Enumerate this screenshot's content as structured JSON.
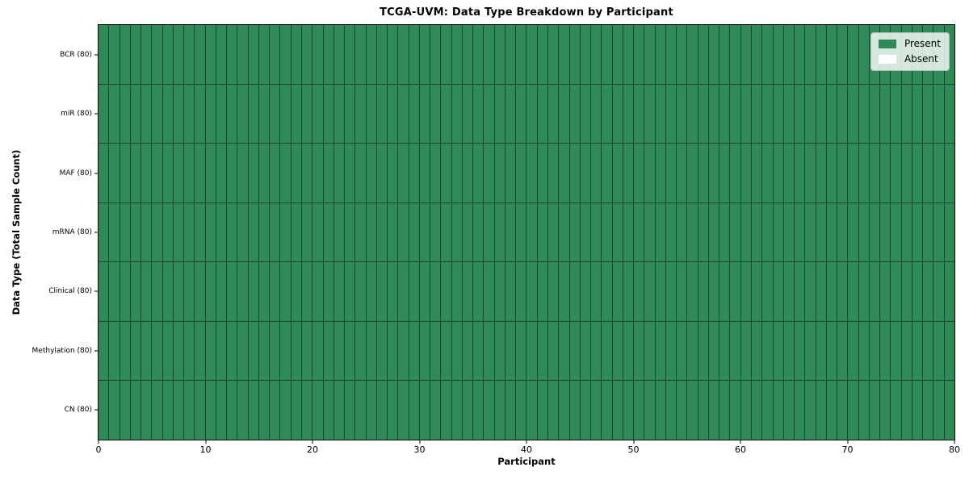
{
  "figure": {
    "background": "#ffffff"
  },
  "chart_data": {
    "type": "heatmap",
    "title": "TCGA-UVM: Data Type Breakdown by Participant",
    "xlabel": "Participant",
    "ylabel": "Data Type (Total Sample Count)",
    "xlim": [
      0,
      80
    ],
    "x_ticks": [
      0,
      10,
      20,
      30,
      40,
      50,
      60,
      70,
      80
    ],
    "n_participants": 80,
    "rows": [
      {
        "label": "BCR (80)",
        "present_count": 80
      },
      {
        "label": "miR (80)",
        "present_count": 80
      },
      {
        "label": "MAF (80)",
        "present_count": 80
      },
      {
        "label": "mRNA (80)",
        "present_count": 80
      },
      {
        "label": "Clinical (80)",
        "present_count": 80
      },
      {
        "label": "Methylation (80)",
        "present_count": 80
      },
      {
        "label": "CN (80)",
        "present_count": 80
      }
    ],
    "legend": {
      "position": "upper right",
      "entries": [
        {
          "label": "Present",
          "color": "#2e8b57"
        },
        {
          "label": "Absent",
          "color": "#ffffff"
        }
      ]
    },
    "colors": {
      "present": "#2e8b57",
      "absent": "#ffffff",
      "cell_edge": "#1e4630",
      "spine": "#000000"
    },
    "grid": "off"
  }
}
